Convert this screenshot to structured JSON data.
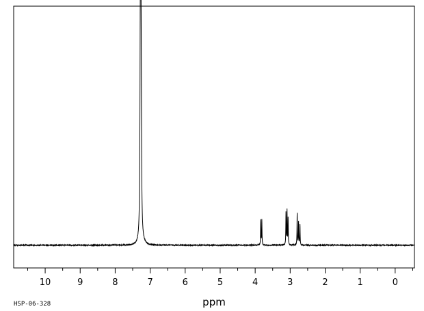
{
  "chart_data": {
    "type": "line",
    "title": "",
    "xlabel": "ppm",
    "ylabel": "",
    "x_reversed": true,
    "xlim": [
      10.9,
      -0.55
    ],
    "ylim": [
      -0.1,
      1.05
    ],
    "x_ticks": [
      10,
      9,
      8,
      7,
      6,
      5,
      4,
      3,
      2,
      1,
      0
    ],
    "x_tick_labels": [
      "10",
      "9",
      "8",
      "7",
      "6",
      "5",
      "4",
      "3",
      "2",
      "1",
      "0"
    ],
    "grid": false,
    "series": [
      {
        "peaks": [
          {
            "ppm": 7.28,
            "height": 1.0
          },
          {
            "ppm": 7.26,
            "height": 0.82
          },
          {
            "ppm": 3.84,
            "height": 0.11
          },
          {
            "ppm": 3.81,
            "height": 0.11
          },
          {
            "ppm": 3.12,
            "height": 0.14
          },
          {
            "ppm": 3.09,
            "height": 0.15
          },
          {
            "ppm": 3.06,
            "height": 0.12
          },
          {
            "ppm": 2.8,
            "height": 0.14
          },
          {
            "ppm": 2.76,
            "height": 0.1
          },
          {
            "ppm": 2.72,
            "height": 0.09
          }
        ]
      }
    ]
  },
  "footer": {
    "code": "HSP-06-328"
  }
}
